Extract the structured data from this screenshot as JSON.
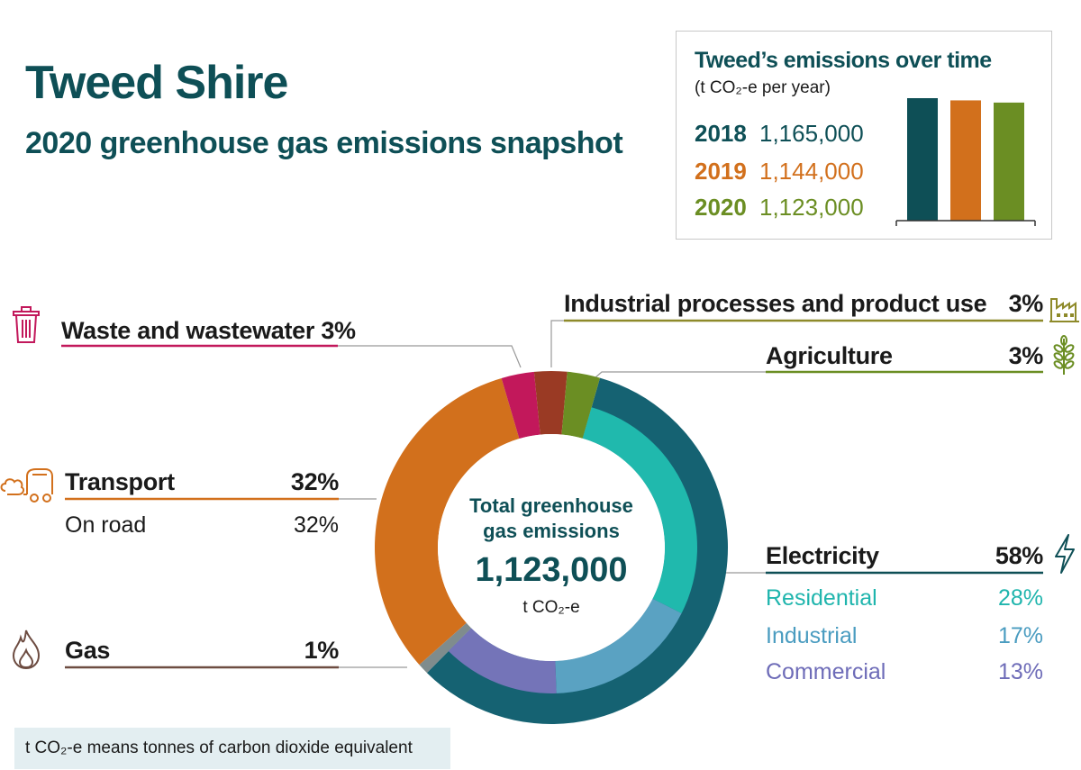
{
  "header": {
    "title": "Tweed Shire",
    "subtitle": "2020 greenhouse gas emissions snapshot"
  },
  "trend": {
    "title": "Tweed’s emissions over time",
    "unit_text": "(t CO₂-e per year)",
    "rows": [
      {
        "year": "2018",
        "value_label": "1,165,000",
        "color": "#0e4f56"
      },
      {
        "year": "2019",
        "value_label": "1,144,000",
        "color": "#d2701c"
      },
      {
        "year": "2020",
        "value_label": "1,123,000",
        "color": "#6b8e23"
      }
    ]
  },
  "donut_center": {
    "line1": "Total greenhouse",
    "line2": "gas emissions",
    "total": "1,123,000",
    "unit": "t CO₂-e"
  },
  "labels": {
    "waste": {
      "name": "Waste and wastewater",
      "pct": "3%",
      "color": "#c2185b"
    },
    "industrial_processes": {
      "name": "Industrial processes and product use",
      "pct": "3%",
      "color": "#8e8a2a"
    },
    "agriculture": {
      "name": "Agriculture",
      "pct": "3%",
      "color": "#6b8e23"
    },
    "transport": {
      "name": "Transport",
      "pct": "32%",
      "color": "#d2701c",
      "sub_name": "On road",
      "sub_pct": "32%"
    },
    "gas": {
      "name": "Gas",
      "pct": "1%",
      "color": "#6d4c41"
    },
    "electricity": {
      "name": "Electricity",
      "pct": "58%",
      "color": "#0e4f56",
      "subs": [
        {
          "name": "Residential",
          "pct": "28%",
          "color": "#1fb5ad"
        },
        {
          "name": "Industrial",
          "pct": "17%",
          "color": "#4a9cc0"
        },
        {
          "name": "Commercial",
          "pct": "13%",
          "color": "#6e6cb8"
        }
      ]
    }
  },
  "footnote": "t CO₂-e means tonnes of carbon dioxide equivalent",
  "chart_data": [
    {
      "type": "bar",
      "categories": [
        "2018",
        "2019",
        "2020"
      ],
      "values": [
        1165000,
        1144000,
        1123000
      ],
      "title": "Tweed’s emissions over time",
      "ylabel": "(t CO₂-e per year)",
      "colors": [
        "#0e4f56",
        "#d2701c",
        "#6b8e23"
      ]
    },
    {
      "type": "pie",
      "title": "Total greenhouse gas emissions",
      "total": 1123000,
      "outer": [
        {
          "name": "Electricity",
          "value": 58,
          "color": "#156272"
        },
        {
          "name": "Gas",
          "value": 1,
          "color": "#7f8c8d"
        },
        {
          "name": "Transport",
          "value": 32,
          "color": "#d2701c"
        },
        {
          "name": "Waste and wastewater",
          "value": 3,
          "color": "#c2185b"
        },
        {
          "name": "Industrial processes and product use",
          "value": 3,
          "color": "#9a3a24"
        },
        {
          "name": "Agriculture",
          "value": 3,
          "color": "#6b8e23"
        }
      ],
      "inner": [
        {
          "name": "Residential",
          "value": 28,
          "color": "#20b9ad"
        },
        {
          "name": "Industrial",
          "value": 17,
          "color": "#5aa2c2"
        },
        {
          "name": "Commercial",
          "value": 13,
          "color": "#7474b8"
        }
      ]
    }
  ]
}
